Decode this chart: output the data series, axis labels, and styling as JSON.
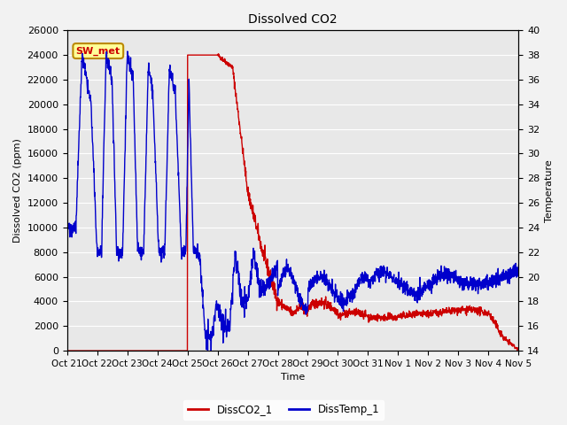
{
  "title": "Dissolved CO2",
  "xlabel": "Time",
  "ylabel_left": "Dissolved CO2 (ppm)",
  "ylabel_right": "Temperature",
  "ylim_left": [
    0,
    26000
  ],
  "ylim_right": [
    14,
    40
  ],
  "background_color": "#f2f2f2",
  "plot_bg_color": "#e8e8e8",
  "co2_color": "#cc0000",
  "temp_color": "#0000cc",
  "legend_entries": [
    "DissCO2_1",
    "DissTemp_1"
  ],
  "annotation_text": "SW_met",
  "annotation_bg": "#ffff99",
  "annotation_border": "#bb8800",
  "annotation_text_color": "#cc0000",
  "tick_labels": [
    "Oct 21",
    "Oct 22",
    "Oct 23",
    "Oct 24",
    "Oct 25",
    "Oct 26",
    "Oct 27",
    "Oct 28",
    "Oct 29",
    "Oct 30",
    "Oct 31",
    "Nov 1",
    "Nov 2",
    "Nov 3",
    "Nov 4",
    "Nov 5"
  ],
  "figsize": [
    6.4,
    4.8
  ],
  "dpi": 100
}
